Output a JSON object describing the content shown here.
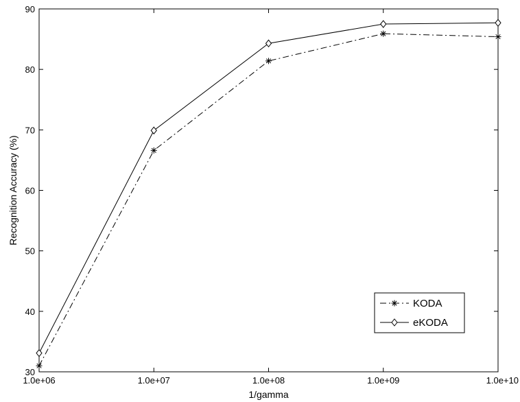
{
  "chart_data": {
    "type": "line",
    "title": "",
    "xlabel": "1/gamma",
    "ylabel": "Recognition Accuracy (%)",
    "x_scale": "log",
    "x": [
      1000000,
      10000000,
      100000000,
      1000000000,
      10000000000
    ],
    "x_tick_labels": [
      "1.0e+06",
      "1.0e+07",
      "1.0e+08",
      "1.0e+09",
      "1.0e+10"
    ],
    "y_ticks": [
      30,
      40,
      50,
      60,
      70,
      80,
      90
    ],
    "ylim": [
      30,
      90
    ],
    "grid": false,
    "legend_position": "lower-right",
    "series": [
      {
        "name": "KODA",
        "values": [
          31.0,
          66.6,
          81.4,
          85.9,
          85.4
        ],
        "line_style": "dash-dot",
        "marker": "asterisk",
        "color": "#000000"
      },
      {
        "name": "eKODA",
        "values": [
          33.1,
          69.9,
          84.3,
          87.5,
          87.7
        ],
        "line_style": "solid",
        "marker": "diamond",
        "color": "#000000"
      }
    ]
  }
}
